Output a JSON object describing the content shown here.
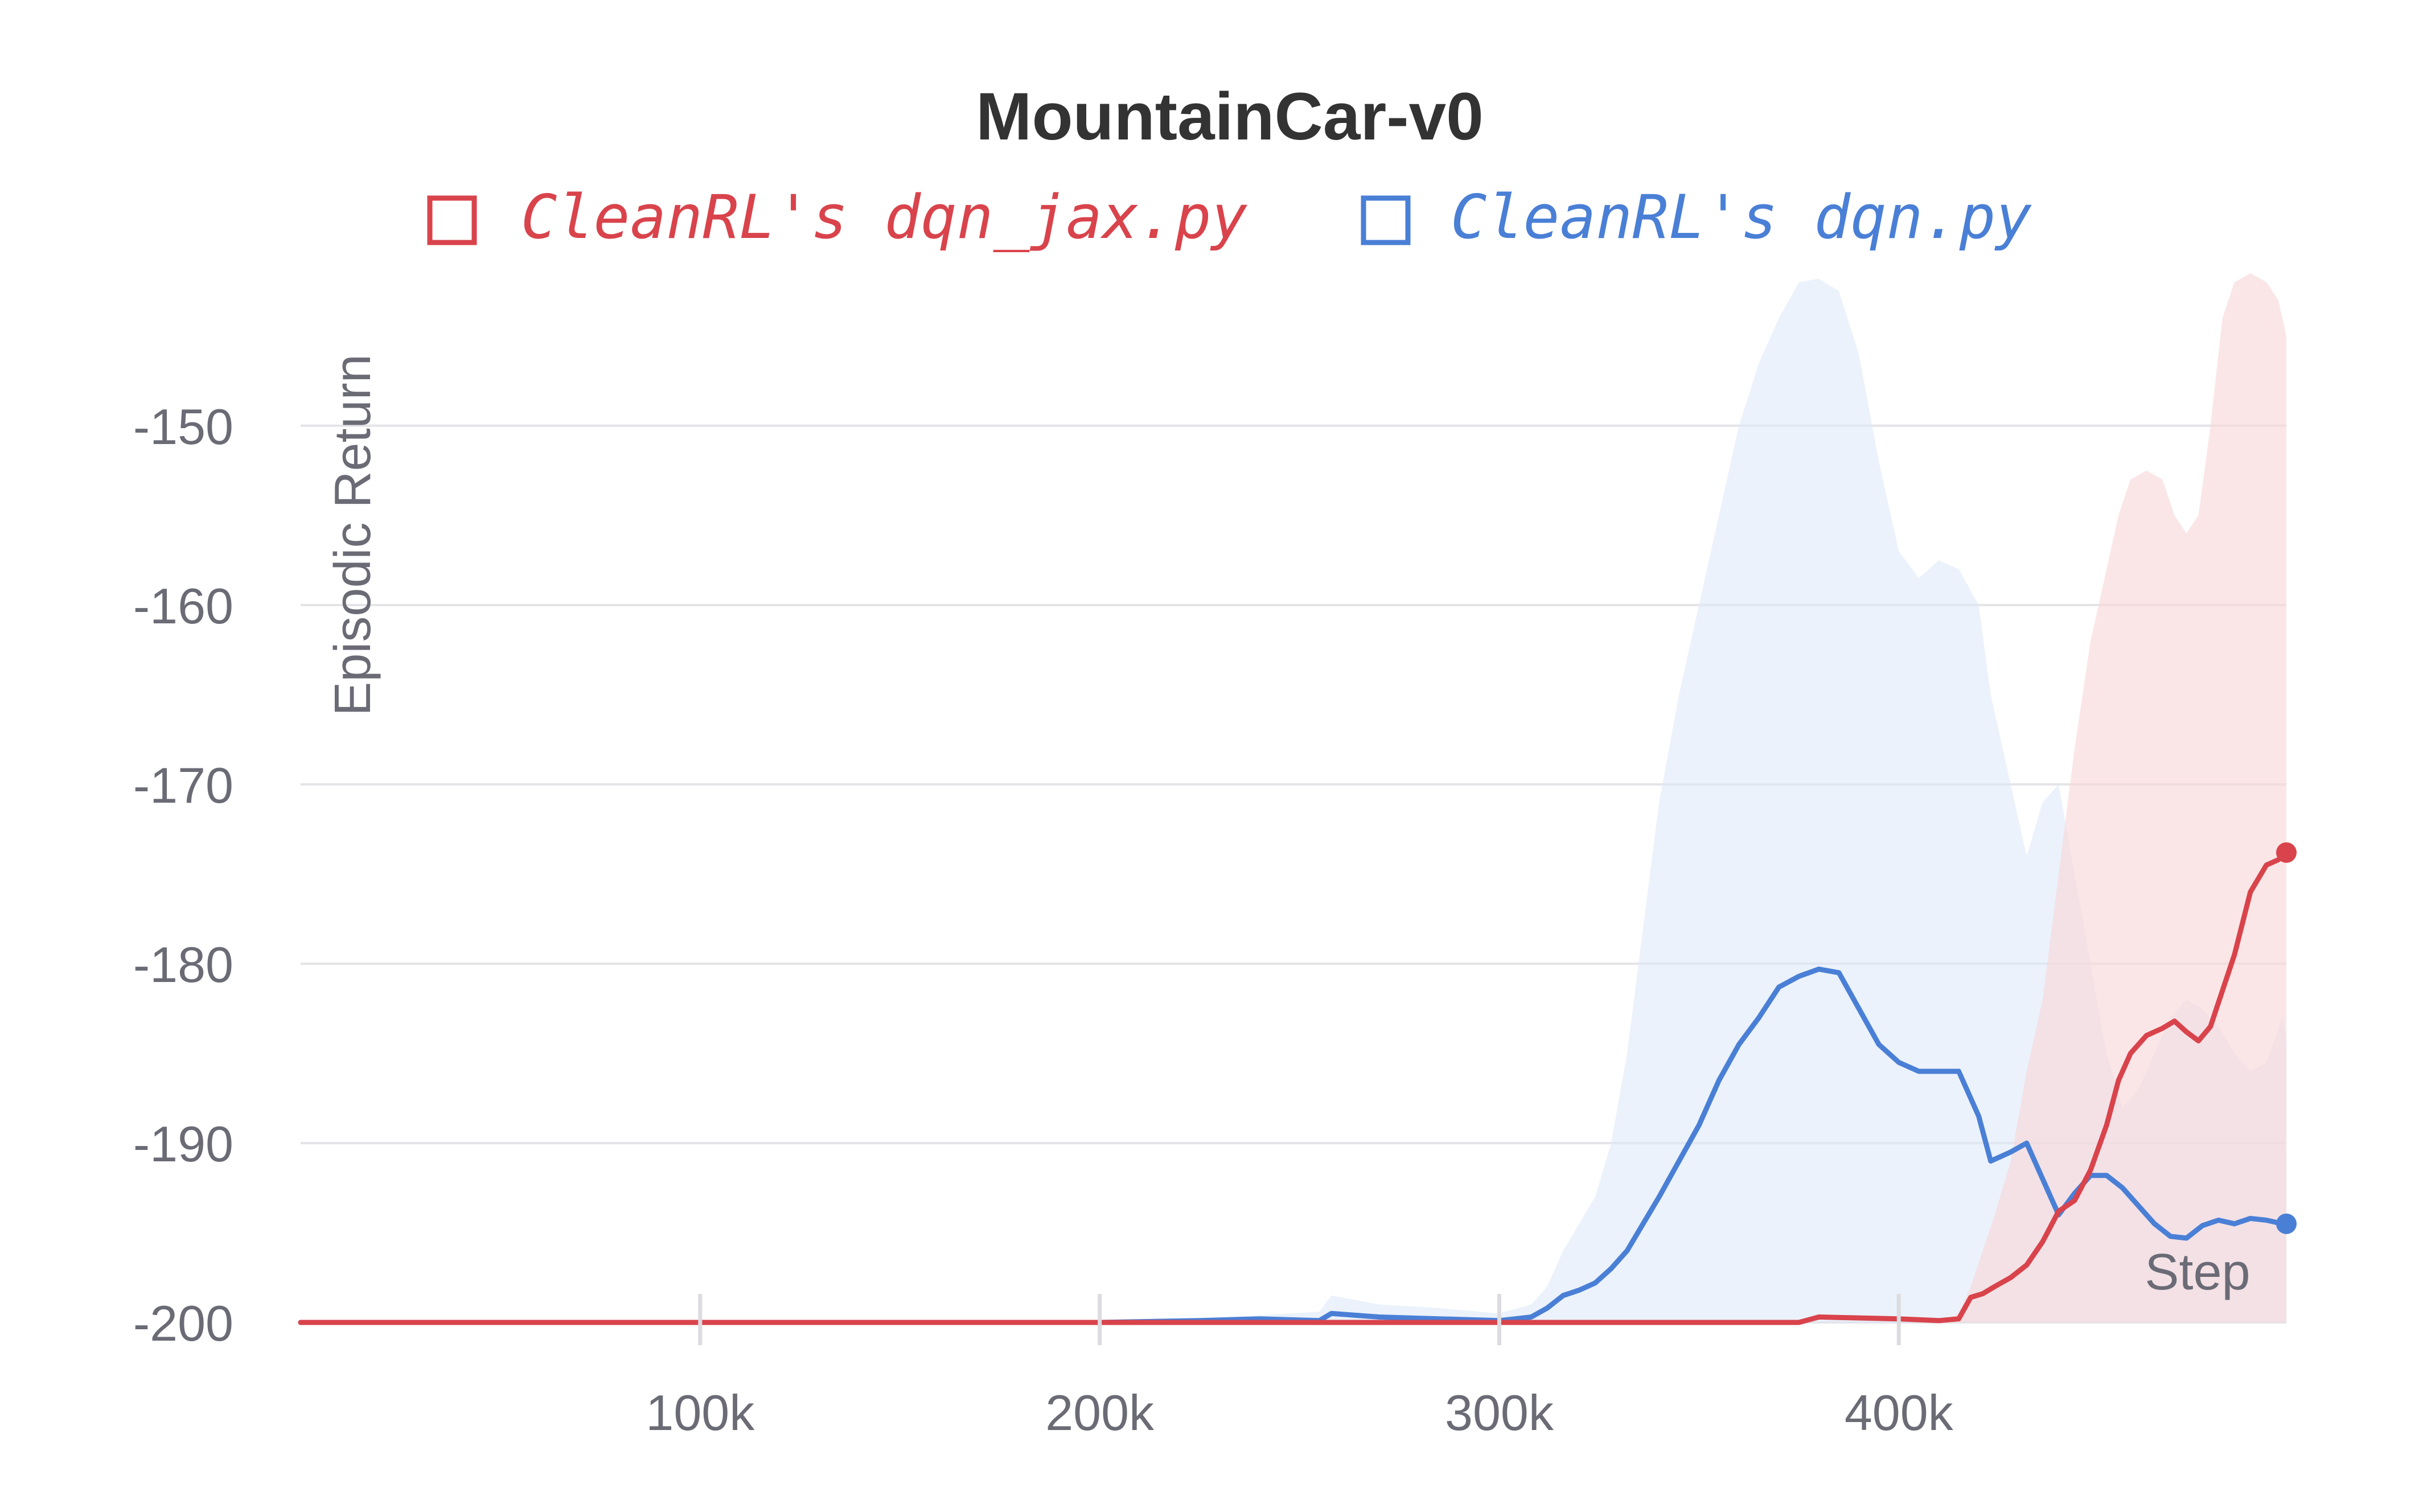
{
  "chart_data": {
    "type": "line",
    "title": "MountainCar-v0",
    "xlabel": "Step",
    "ylabel": "Episodic Return",
    "xlim": [
      0,
      497000
    ],
    "ylim": [
      -200,
      -141.5
    ],
    "x_ticks": [
      100000,
      200000,
      300000,
      400000
    ],
    "x_tick_labels": [
      "100k",
      "200k",
      "300k",
      "400k"
    ],
    "y_ticks": [
      -150,
      -160,
      -170,
      -180,
      -190,
      -200
    ],
    "y_tick_labels": [
      "-150",
      "-160",
      "-170",
      "-180",
      "-190",
      "-200"
    ],
    "grid": true,
    "legend_position": "top",
    "series": [
      {
        "name": "CleanRL's dqn_jax.py",
        "color": "#d9434b",
        "band_color": "#f9d7d9",
        "x": [
          0,
          100000,
          200000,
          300000,
          350000,
          375000,
          380000,
          400000,
          410000,
          415000,
          418000,
          421000,
          424000,
          428000,
          432000,
          436000,
          440000,
          444000,
          448000,
          452000,
          455000,
          458000,
          462000,
          466000,
          469000,
          472000,
          475000,
          478000,
          481000,
          484000,
          488000,
          492000,
          495000,
          497000
        ],
        "y": [
          -200,
          -200,
          -200,
          -200,
          -200,
          -200,
          -199.7,
          -199.8,
          -199.9,
          -199.8,
          -198.6,
          -198.4,
          -198,
          -197.5,
          -196.8,
          -195.5,
          -193.8,
          -193.2,
          -191.5,
          -189,
          -186.5,
          -185,
          -184,
          -183.6,
          -183.2,
          -183.8,
          -184.3,
          -183.5,
          -181.5,
          -179.5,
          -176,
          -174.5,
          -174.2,
          -173.8
        ],
        "upper": [
          -200,
          -200,
          -200,
          -200,
          -200,
          -200,
          -200,
          -200,
          -200,
          -199.5,
          -198,
          -196,
          -194,
          -191,
          -186,
          -182,
          -175,
          -168,
          -162,
          -158,
          -155,
          -153,
          -152.5,
          -153,
          -155,
          -156,
          -155,
          -150,
          -144,
          -142,
          -141.5,
          -142,
          -143,
          -145
        ],
        "lower": [
          -200,
          -200,
          -200,
          -200,
          -200,
          -200,
          -200,
          -200,
          -200,
          -200,
          -200,
          -200,
          -200,
          -200,
          -200,
          -200,
          -200,
          -200,
          -200,
          -200,
          -200,
          -200,
          -200,
          -200,
          -200,
          -200,
          -200,
          -200,
          -200,
          -200,
          -200,
          -200,
          -200,
          -200
        ]
      },
      {
        "name": "CleanRL's dqn.py",
        "color": "#4a7fd6",
        "band_color": "#dde9f8",
        "x": [
          0,
          100000,
          200000,
          225000,
          240000,
          255000,
          258000,
          270000,
          285000,
          300000,
          308000,
          312000,
          316000,
          320000,
          324000,
          328000,
          332000,
          336000,
          340000,
          345000,
          350000,
          355000,
          360000,
          365000,
          370000,
          375000,
          380000,
          385000,
          390000,
          395000,
          400000,
          405000,
          410000,
          415000,
          420000,
          423000,
          428000,
          432000,
          436000,
          440000,
          444000,
          448000,
          452000,
          456000,
          460000,
          464000,
          468000,
          472000,
          476000,
          480000,
          484000,
          488000,
          492000,
          496000,
          497000
        ],
        "y": [
          -200,
          -200,
          -200,
          -199.9,
          -199.8,
          -199.9,
          -199.5,
          -199.7,
          -199.8,
          -199.9,
          -199.7,
          -199.2,
          -198.5,
          -198.2,
          -197.8,
          -197,
          -196,
          -194.5,
          -193,
          -191,
          -189,
          -186.5,
          -184.5,
          -183,
          -181.3,
          -180.7,
          -180.3,
          -180.5,
          -182.5,
          -184.5,
          -185.5,
          -186,
          -186,
          -186,
          -188.5,
          -191,
          -190.5,
          -190,
          -192,
          -194,
          -192.8,
          -191.8,
          -191.8,
          -192.5,
          -193.5,
          -194.5,
          -195.2,
          -195.3,
          -194.6,
          -194.3,
          -194.5,
          -194.2,
          -194.3,
          -194.5,
          -194.5
        ],
        "upper": [
          -200,
          -200,
          -200,
          -199.8,
          -199.6,
          -199.4,
          -198.5,
          -199,
          -199.2,
          -199.5,
          -199,
          -198,
          -196,
          -194.5,
          -193,
          -190,
          -185,
          -178,
          -171,
          -165,
          -160,
          -155,
          -150,
          -146.5,
          -144,
          -142,
          -141.8,
          -142.5,
          -146,
          -152,
          -157,
          -158.5,
          -157.5,
          -158,
          -160,
          -165,
          -170,
          -174,
          -171,
          -170,
          -175,
          -180,
          -185,
          -188,
          -187,
          -185,
          -183,
          -182,
          -182.5,
          -183.5,
          -185,
          -186,
          -185.5,
          -183,
          -184
        ]
      }
    ]
  }
}
